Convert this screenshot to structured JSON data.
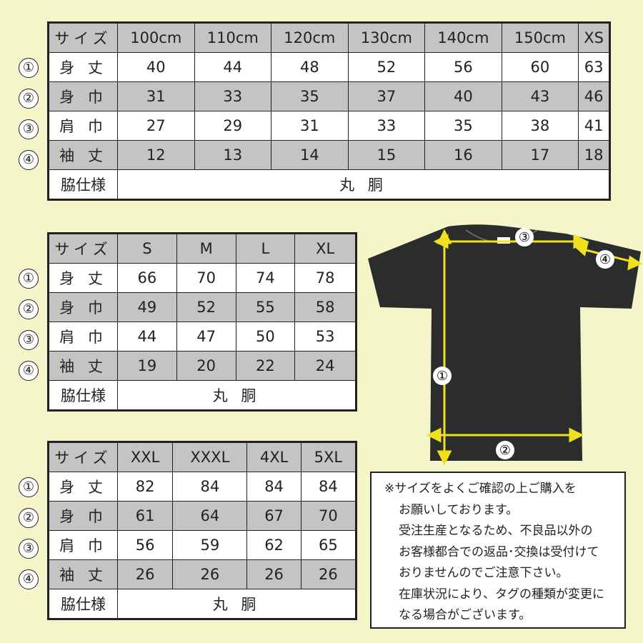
{
  "row_markers": [
    "①",
    "②",
    "③",
    "④"
  ],
  "tables": [
    {
      "header": [
        "サイズ",
        "100cm",
        "110cm",
        "120cm",
        "130cm",
        "140cm",
        "150cm",
        "XS"
      ],
      "rows": [
        [
          "身 丈",
          "40",
          "44",
          "48",
          "52",
          "56",
          "60",
          "63"
        ],
        [
          "身 巾",
          "31",
          "33",
          "35",
          "37",
          "40",
          "43",
          "46"
        ],
        [
          "肩 巾",
          "27",
          "29",
          "31",
          "33",
          "35",
          "38",
          "41"
        ],
        [
          "袖 丈",
          "12",
          "13",
          "14",
          "15",
          "16",
          "17",
          "18"
        ]
      ],
      "footer": [
        "脇仕様",
        "丸 胴"
      ]
    },
    {
      "header": [
        "サイズ",
        "S",
        "M",
        "L",
        "XL"
      ],
      "rows": [
        [
          "身 丈",
          "66",
          "70",
          "74",
          "78"
        ],
        [
          "身 巾",
          "49",
          "52",
          "55",
          "58"
        ],
        [
          "肩 巾",
          "44",
          "47",
          "50",
          "53"
        ],
        [
          "袖 丈",
          "19",
          "20",
          "22",
          "24"
        ]
      ],
      "footer": [
        "脇仕様",
        "丸 胴"
      ]
    },
    {
      "header": [
        "サイズ",
        "XXL",
        "XXXL",
        "4XL",
        "5XL"
      ],
      "rows": [
        [
          "身 丈",
          "82",
          "84",
          "84",
          "84"
        ],
        [
          "身 巾",
          "61",
          "64",
          "67",
          "70"
        ],
        [
          "肩 巾",
          "56",
          "59",
          "62",
          "65"
        ],
        [
          "袖 丈",
          "26",
          "26",
          "26",
          "26"
        ]
      ],
      "footer": [
        "脇仕様",
        "丸 胴"
      ]
    }
  ],
  "diagram": {
    "labels": [
      "①",
      "②",
      "③",
      "④"
    ],
    "shirt_color": "#2b2d2c",
    "arrow_color": "#f0e020"
  },
  "note": {
    "lines": [
      "※サイズをよくご確認の上ご購入を",
      "お願いしております。",
      "受注生産となるため、不良品以外の",
      "お客様都合での返品･交換は受付けて",
      "おりませんのでご注意下さい。",
      "在庫状況により、タグの種類が変更に",
      "なる場合がございます。"
    ]
  }
}
